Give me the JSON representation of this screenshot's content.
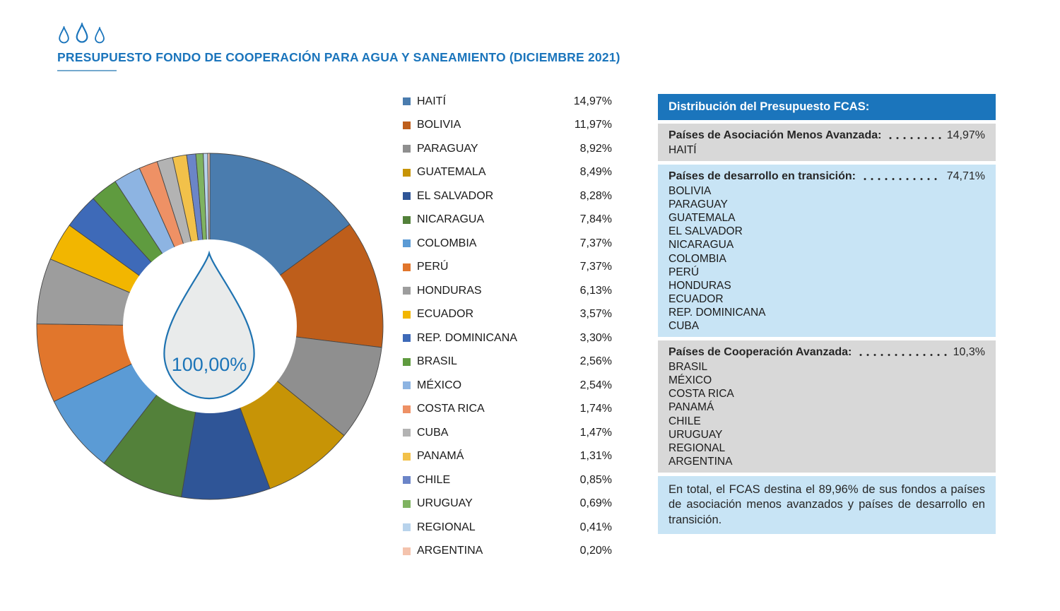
{
  "header": {
    "title": "PRESUPUESTO FONDO DE COOPERACIÓN PARA AGUA Y SANEAMIENTO (DICIEMBRE 2021)"
  },
  "chart_data": {
    "type": "pie",
    "subtype": "donut",
    "title": "PRESUPUESTO FONDO DE COOPERACIÓN PARA AGUA Y SANEAMIENTO (DICIEMBRE 2021)",
    "center_label": "100,00%",
    "start_angle_deg": 0,
    "direction": "clockwise",
    "legend_position": "right-of-chart",
    "series": [
      {
        "label": "HAITÍ",
        "value": 14.97,
        "display": "14,97%",
        "color": "#4A7CAE"
      },
      {
        "label": "BOLIVIA",
        "value": 11.97,
        "display": "11,97%",
        "color": "#BE5E1B"
      },
      {
        "label": "PARAGUAY",
        "value": 8.92,
        "display": "8,92%",
        "color": "#8F8F8F"
      },
      {
        "label": "GUATEMALA",
        "value": 8.49,
        "display": "8,49%",
        "color": "#C79406"
      },
      {
        "label": "EL SALVADOR",
        "value": 8.28,
        "display": "8,28%",
        "color": "#2F5597"
      },
      {
        "label": "NICARAGUA",
        "value": 7.84,
        "display": "7,84%",
        "color": "#53813A"
      },
      {
        "label": "COLOMBIA",
        "value": 7.37,
        "display": "7,37%",
        "color": "#5B9BD5"
      },
      {
        "label": "PERÚ",
        "value": 7.37,
        "display": "7,37%",
        "color": "#E1762C"
      },
      {
        "label": "HONDURAS",
        "value": 6.13,
        "display": "6,13%",
        "color": "#9D9D9D"
      },
      {
        "label": "ECUADOR",
        "value": 3.57,
        "display": "3,57%",
        "color": "#F2B600"
      },
      {
        "label": "REP. DOMINICANA",
        "value": 3.3,
        "display": "3,30%",
        "color": "#3E6AB8"
      },
      {
        "label": "BRASIL",
        "value": 2.56,
        "display": "2,56%",
        "color": "#5F9B3F"
      },
      {
        "label": "MÉXICO",
        "value": 2.54,
        "display": "2,54%",
        "color": "#8DB4E2"
      },
      {
        "label": "COSTA RICA",
        "value": 1.74,
        "display": "1,74%",
        "color": "#EE9165"
      },
      {
        "label": "CUBA",
        "value": 1.47,
        "display": "1,47%",
        "color": "#B3B3B3"
      },
      {
        "label": "PANAMÁ",
        "value": 1.31,
        "display": "1,31%",
        "color": "#F2C14A"
      },
      {
        "label": "CHILE",
        "value": 0.85,
        "display": "0,85%",
        "color": "#6B85C8"
      },
      {
        "label": "URUGUAY",
        "value": 0.69,
        "display": "0,69%",
        "color": "#7FB361"
      },
      {
        "label": "REGIONAL",
        "value": 0.41,
        "display": "0,41%",
        "color": "#B8D3EC"
      },
      {
        "label": "ARGENTINA",
        "value": 0.2,
        "display": "0,20%",
        "color": "#F4C3AD"
      }
    ]
  },
  "panel": {
    "title": "Distribución del Presupuesto FCAS:",
    "sections": [
      {
        "label": "Países de Asociación Menos Avanzada:",
        "value": "14,97%",
        "bg": "gray",
        "countries": [
          "HAITÍ"
        ]
      },
      {
        "label": "Países de desarrollo en transición:",
        "value": "74,71%",
        "bg": "blue",
        "countries": [
          "BOLIVIA",
          "PARAGUAY",
          "GUATEMALA",
          "EL SALVADOR",
          "NICARAGUA",
          "COLOMBIA",
          "PERÚ",
          "HONDURAS",
          "ECUADOR",
          "REP. DOMINICANA",
          "CUBA"
        ]
      },
      {
        "label": "Países de Cooperación Avanzada:",
        "value": "10,3%",
        "bg": "gray",
        "countries": [
          "BRASIL",
          "MÉXICO",
          "COSTA RICA",
          "PANAMÁ",
          "CHILE",
          "URUGUAY",
          "REGIONAL",
          "ARGENTINA"
        ]
      }
    ],
    "footer": "En total, el FCAS destina el 89,96% de sus fondos a países de asociación menos avanzados y países de desarrollo en transición."
  },
  "colors": {
    "accent_blue": "#1B75BC",
    "underline_blue": "#74A9CE",
    "panel_gray_bg": "#D8D8D8",
    "panel_blue_bg": "#C8E4F5",
    "drop_fill": "#E9EBEB",
    "text_ink": "#1A1A1A"
  }
}
